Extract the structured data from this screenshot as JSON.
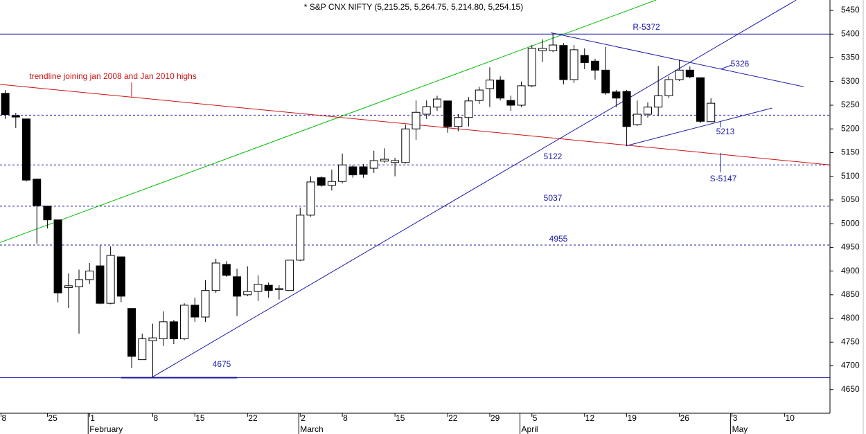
{
  "chart_data": {
    "type": "candlestick",
    "title": "* S&P CNX NIFTY (5,215.25, 5,264.75, 5,214.80, 5,254.15)",
    "open": [
      5275,
      5228,
      5221,
      5094,
      5037,
      5008,
      4865,
      4867,
      4882,
      4911,
      4832,
      4930,
      4821,
      4713,
      4753,
      4757,
      4793,
      4757,
      4828,
      4803,
      4859,
      4914,
      4888,
      4850,
      4857,
      4870,
      4861,
      4859,
      4923,
      5018,
      5097,
      5081,
      5089,
      5120,
      5120,
      5117,
      5132,
      5129,
      5129,
      5200,
      5231,
      5246,
      5259,
      5205,
      5224,
      5260,
      5285,
      5303,
      5260,
      5250,
      5291,
      5365,
      5365,
      5376,
      5304,
      5355,
      5343,
      5324,
      5278,
      5279,
      5209,
      5231,
      5246,
      5270,
      5304,
      5324,
      5308,
      5215.25
    ],
    "high": [
      5282,
      5234,
      5221,
      5095,
      5037,
      5008,
      4895,
      4903,
      4917,
      4954,
      4952,
      4930,
      4821,
      4768,
      4789,
      4815,
      4797,
      4832,
      4844,
      4881,
      4926,
      4921,
      4905,
      4910,
      4891,
      4876,
      4870,
      4923,
      5034,
      5100,
      5100,
      5114,
      5148,
      5124,
      5126,
      5154,
      5159,
      5139,
      5209,
      5260,
      5260,
      5270,
      5259,
      5231,
      5267,
      5289,
      5330,
      5311,
      5270,
      5300,
      5377,
      5389,
      5402,
      5381,
      5377,
      5370,
      5348,
      5373,
      5282,
      5282,
      5260,
      5256,
      5333,
      5311,
      5346,
      5332,
      5308,
      5264.75
    ],
    "low": [
      5221,
      5202,
      5089,
      4958,
      4990,
      4834,
      4822,
      4768,
      4873,
      4830,
      4830,
      4834,
      4695,
      4713,
      4676,
      4742,
      4746,
      4754,
      4793,
      4793,
      4854,
      4888,
      4805,
      4847,
      4837,
      4844,
      4840,
      4859,
      4921,
      5015,
      5078,
      5070,
      5085,
      5097,
      5097,
      5107,
      5129,
      5100,
      5127,
      5177,
      5221,
      5238,
      5192,
      5195,
      5205,
      5253,
      5246,
      5260,
      5238,
      5246,
      5288,
      5341,
      5362,
      5294,
      5297,
      5326,
      5304,
      5272,
      5246,
      5165,
      5206,
      5224,
      5227,
      5265,
      5301,
      5307,
      5212,
      5214.8
    ],
    "close": [
      5230,
      5225,
      5092,
      5038,
      5008,
      4854,
      4869,
      4882,
      4900,
      4832,
      4933,
      4847,
      4720,
      4757,
      4759,
      4793,
      4757,
      4828,
      4803,
      4859,
      4917,
      4891,
      4847,
      4857,
      4872,
      4859,
      4863,
      4923,
      5018,
      5088,
      5081,
      5089,
      5124,
      5103,
      5104,
      5133,
      5136,
      5133,
      5200,
      5235,
      5247,
      5263,
      5205,
      5224,
      5259,
      5282,
      5303,
      5265,
      5250,
      5291,
      5370,
      5370,
      5377,
      5304,
      5367,
      5340,
      5324,
      5276,
      5265,
      5205,
      5231,
      5246,
      5270,
      5304,
      5324,
      5310,
      5216,
      5254.15
    ],
    "xlim": [
      -0.5,
      78.3
    ],
    "ylim": [
      4600,
      5472
    ],
    "yticks": [
      4650,
      4700,
      4750,
      4800,
      4850,
      4900,
      4950,
      5000,
      5050,
      5100,
      5150,
      5200,
      5250,
      5300,
      5350,
      5400,
      5450
    ],
    "xticks": [
      {
        "value": -0.4,
        "label": "8"
      },
      {
        "value": 4,
        "label": "25"
      },
      {
        "value": 8,
        "label": "1"
      },
      {
        "value": 14,
        "label": "8"
      },
      {
        "value": 18,
        "label": "15"
      },
      {
        "value": 23,
        "label": "22"
      },
      {
        "value": 28,
        "label": "2"
      },
      {
        "value": 32,
        "label": "8"
      },
      {
        "value": 37,
        "label": "15"
      },
      {
        "value": 42,
        "label": "22"
      },
      {
        "value": 46,
        "label": "29"
      },
      {
        "value": 50,
        "label": "5"
      },
      {
        "value": 55,
        "label": "12"
      },
      {
        "value": 59,
        "label": "19"
      },
      {
        "value": 64,
        "label": "26"
      },
      {
        "value": 69,
        "label": "3"
      },
      {
        "value": 74,
        "label": "10"
      }
    ],
    "months": [
      {
        "value": 8,
        "label": "February"
      },
      {
        "value": 28,
        "label": "March"
      },
      {
        "value": 49,
        "label": "April"
      },
      {
        "value": 69,
        "label": "May"
      }
    ],
    "levels": [
      {
        "value": 5400,
        "style": "solid"
      },
      {
        "value": 5229,
        "style": "dashed"
      },
      {
        "value": 5124,
        "style": "dashed"
      },
      {
        "value": 5037,
        "style": "dashed"
      },
      {
        "value": 4955,
        "style": "dashed"
      },
      {
        "value": 4675,
        "style": "solid"
      }
    ],
    "trendlines": [
      {
        "color": "#00bb00",
        "x": [
          -0.53,
          61.8
        ],
        "y": [
          4960,
          5472
        ]
      },
      {
        "color": "#cc1111",
        "x": [
          -0.53,
          78.3
        ],
        "y": [
          5294,
          5124
        ]
      },
      {
        "color": "#1a1aa8",
        "x": [
          13.95,
          75.1
        ],
        "y": [
          4676,
          5472
        ]
      },
      {
        "color": "#1a1aa8",
        "x": [
          51.8,
          75.8
        ],
        "y": [
          5403,
          5289
        ]
      },
      {
        "color": "#1a1aa8",
        "x": [
          58.9,
          72.8
        ],
        "y": [
          5164,
          5244
        ]
      },
      {
        "color": "#1a1aa8",
        "x": [
          11,
          22
        ],
        "y": [
          4675,
          4675
        ]
      }
    ],
    "annotations": [
      "R-5372",
      "5326",
      "5213",
      "5122",
      "S-5147",
      "5037",
      "4955",
      "4675",
      "trendline joining jan 2008 and Jan 2010 highs"
    ]
  }
}
